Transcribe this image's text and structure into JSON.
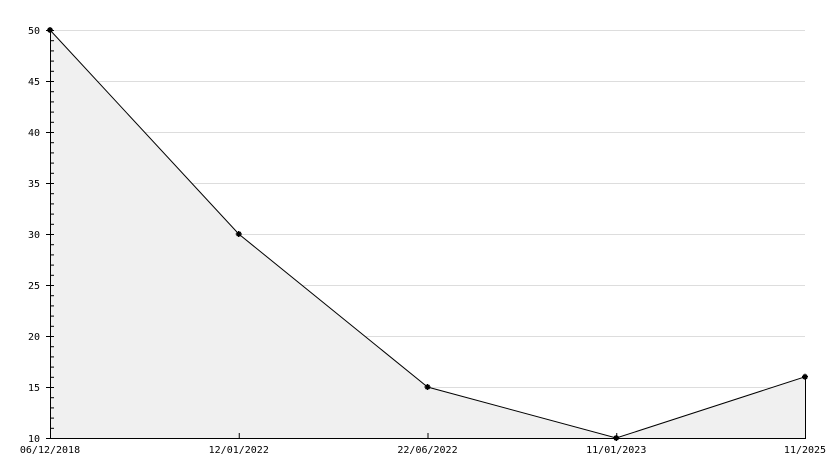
{
  "chart_data": {
    "type": "area",
    "categories": [
      "06/12/2018",
      "12/01/2022",
      "22/06/2022",
      "11/01/2023",
      "11/2025"
    ],
    "series": [
      {
        "values": [
          50,
          30,
          15,
          10,
          16
        ]
      }
    ],
    "title": "",
    "xlabel": "",
    "ylabel": "",
    "ylim": [
      10,
      50
    ],
    "yticks": [
      10,
      15,
      20,
      25,
      30,
      35,
      40,
      45,
      50
    ],
    "grid": true,
    "colors": {
      "fill": "#f0f0f0",
      "line": "#000000",
      "grid": "#dddddd",
      "marker": "#000000"
    }
  }
}
